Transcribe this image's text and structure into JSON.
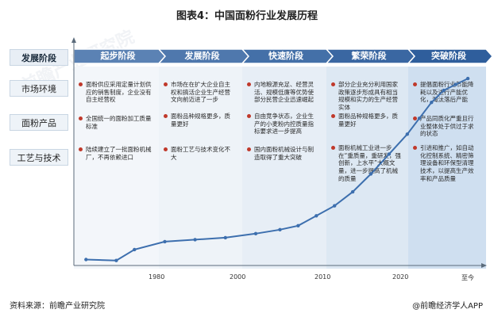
{
  "title": "图表4：中国面粉行业发展历程",
  "row_labels": [
    "发展阶段",
    "市场环境",
    "面粉产品",
    "工艺与技术"
  ],
  "stages": [
    {
      "name": "起步阶段",
      "color": "#5b82b4"
    },
    {
      "name": "发展阶段",
      "color": "#4f78ad"
    },
    {
      "name": "快速阶段",
      "color": "#4470a8"
    },
    {
      "name": "繁荣阶段",
      "color": "#3a67a2"
    },
    {
      "name": "突破阶段",
      "color": "#2f5e9c"
    }
  ],
  "columns": [
    {
      "items": [
        {
          "text": "面粉供应采用定量计划供应的销售制度，企业没有自主经营权"
        },
        {
          "text": "全国统一的面粉加工质量标准"
        },
        {
          "text": "陆续建立了一批面粉机械厂，不再依赖进口"
        }
      ]
    },
    {
      "items": [
        {
          "text": "市场在在扩大企业自主权和搞活企业生产经营文向前迈进了一步"
        },
        {
          "text": "面粉品种规格更多，质量更好"
        },
        {
          "text": "面粉工艺与技术变化不大"
        }
      ]
    },
    {
      "items": [
        {
          "text": "内地粮源充足、经营灵活、规模低廉等优势使部分民营企业迅速崛起"
        },
        {
          "text": "自由竞争状态，企业生产的小麦粉内控质量指标要求进一步提高"
        },
        {
          "text": "国内面粉机械设计与制造取得了重大突破"
        }
      ]
    },
    {
      "items": [
        {
          "text": "部分企业充分利用国家政策逐步形成具有相当规模和实力的生产经营实体"
        },
        {
          "text": "面粉品种规格更多，质量更好"
        },
        {
          "text": "面粉机械工业进一步在“重质量，重研发，强创新，上水平”大概文量，进一步提高了机械的质量"
        }
      ]
    },
    {
      "items": [
        {
          "text": "提倡面粉行业节能降耗以及进行产能优化，淘汰落后产能"
        },
        {
          "text": "产品同质化严重且行业整体处于供过于求的状态"
        },
        {
          "text": "引进和推广，如自动化控制系统、精密筛理设备和环保型清理技术，以提高生产效率和产品质量"
        }
      ]
    }
  ],
  "chart_data": {
    "type": "line",
    "x_ticks": [
      "1980",
      "2000",
      "2010",
      "2020",
      "至今"
    ],
    "points": [
      {
        "x": 1962,
        "y": 3
      },
      {
        "x": 1967,
        "y": 2.5
      },
      {
        "x": 1970,
        "y": 8
      },
      {
        "x": 1975,
        "y": 12
      },
      {
        "x": 1980,
        "y": 13
      },
      {
        "x": 1985,
        "y": 14
      },
      {
        "x": 1990,
        "y": 16
      },
      {
        "x": 1994,
        "y": 18
      },
      {
        "x": 1997,
        "y": 20
      },
      {
        "x": 2000,
        "y": 25
      },
      {
        "x": 2003,
        "y": 30
      },
      {
        "x": 2006,
        "y": 37
      },
      {
        "x": 2009,
        "y": 46
      },
      {
        "x": 2012,
        "y": 56
      },
      {
        "x": 2015,
        "y": 66
      },
      {
        "x": 2017,
        "y": 74
      },
      {
        "x": 2019,
        "y": 82
      },
      {
        "x": 2021,
        "y": 88
      },
      {
        "x": 2023,
        "y": 91
      },
      {
        "x": 2025,
        "y": 94
      }
    ],
    "xlim": [
      1960,
      2028
    ],
    "ylim": [
      0,
      100
    ]
  },
  "footer_left": "资料来源：前瞻产业研究院",
  "footer_right": "@前瞻经济学人APP",
  "watermark_text": "前瞻产业研究院"
}
